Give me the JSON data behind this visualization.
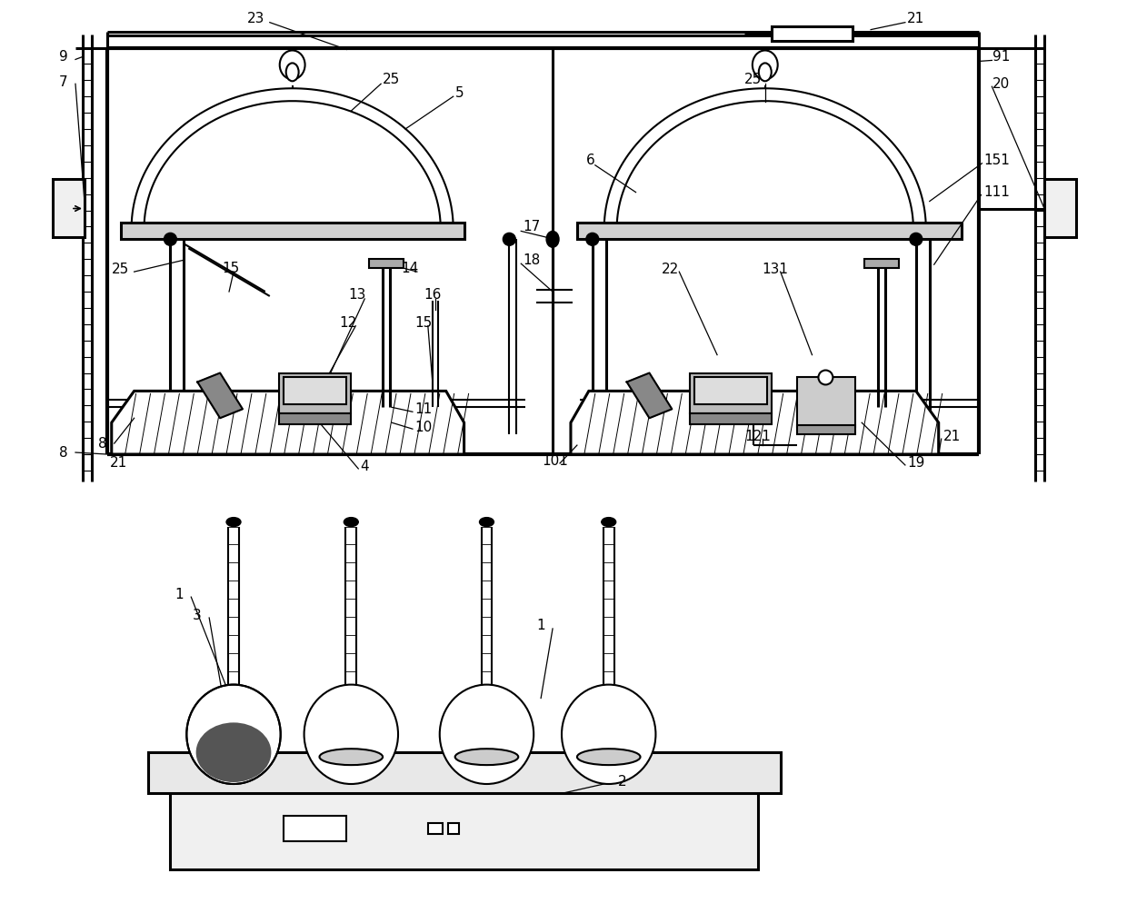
{
  "bg_color": "#ffffff",
  "fig_width": 12.4,
  "fig_height": 10.05
}
